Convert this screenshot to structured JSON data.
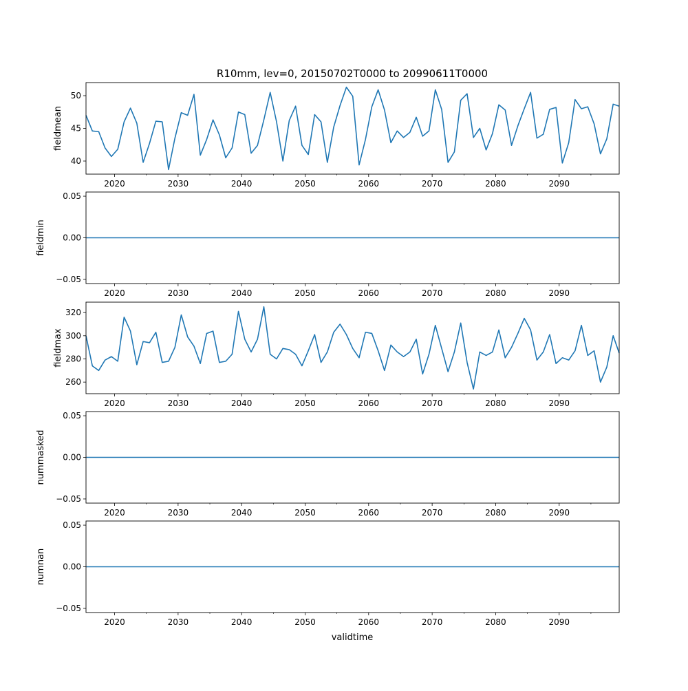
{
  "title": "R10mm, lev=0, 20150702T0000 to 20990611T0000",
  "xlabel": "validtime",
  "line_color": "#1f77b4",
  "x_ticks": [
    2020,
    2030,
    2040,
    2050,
    2060,
    2070,
    2080,
    2090
  ],
  "x_range": [
    2015.5,
    2099.45
  ],
  "chart_data": [
    {
      "type": "line",
      "name": "fieldmean",
      "ylabel": "fieldmean",
      "ylim": [
        38.0,
        52.0
      ],
      "y_ticks": [
        40,
        45,
        50
      ],
      "x": [
        2015.5,
        2016.5,
        2017.5,
        2018.5,
        2019.5,
        2020.5,
        2021.5,
        2022.5,
        2023.5,
        2024.5,
        2025.5,
        2026.5,
        2027.5,
        2028.5,
        2029.5,
        2030.5,
        2031.5,
        2032.5,
        2033.5,
        2034.5,
        2035.5,
        2036.5,
        2037.5,
        2038.5,
        2039.5,
        2040.5,
        2041.5,
        2042.5,
        2043.5,
        2044.5,
        2045.5,
        2046.5,
        2047.5,
        2048.5,
        2049.5,
        2050.5,
        2051.5,
        2052.5,
        2053.5,
        2054.5,
        2055.5,
        2056.5,
        2057.5,
        2058.5,
        2059.5,
        2060.5,
        2061.5,
        2062.5,
        2063.5,
        2064.5,
        2065.5,
        2066.5,
        2067.5,
        2068.5,
        2069.5,
        2070.5,
        2071.5,
        2072.5,
        2073.5,
        2074.5,
        2075.5,
        2076.5,
        2077.5,
        2078.5,
        2079.5,
        2080.5,
        2081.5,
        2082.5,
        2083.5,
        2084.5,
        2085.5,
        2086.5,
        2087.5,
        2088.5,
        2089.5,
        2090.5,
        2091.5,
        2092.5,
        2093.5,
        2094.5,
        2095.5,
        2096.5,
        2097.5,
        2098.5,
        2099.45
      ],
      "y": [
        47.0,
        44.6,
        44.5,
        42.0,
        40.7,
        41.8,
        46.0,
        48.1,
        45.8,
        39.8,
        42.7,
        46.1,
        46.0,
        38.7,
        43.5,
        47.4,
        47.0,
        50.2,
        40.9,
        43.3,
        46.3,
        44.0,
        40.5,
        42.0,
        47.5,
        47.1,
        41.2,
        42.4,
        46.3,
        50.5,
        46.0,
        40.0,
        46.2,
        48.4,
        42.4,
        41.0,
        47.1,
        46.0,
        39.8,
        45.2,
        48.5,
        51.3,
        49.9,
        39.4,
        43.3,
        48.3,
        50.9,
        47.8,
        42.8,
        44.6,
        43.6,
        44.4,
        46.7,
        43.8,
        44.6,
        50.9,
        47.9,
        39.8,
        41.4,
        49.3,
        50.3,
        43.6,
        45.0,
        41.7,
        44.2,
        48.6,
        47.8,
        42.4,
        45.4,
        48.0,
        50.5,
        43.5,
        44.1,
        47.9,
        48.2,
        39.7,
        42.8,
        49.4,
        48.0,
        48.3,
        45.7,
        41.1,
        43.4,
        48.7,
        48.4
      ]
    },
    {
      "type": "line",
      "name": "fieldmin",
      "ylabel": "fieldmin",
      "ylim": [
        -0.055,
        0.055
      ],
      "y_ticks": [
        -0.05,
        0.0,
        0.05
      ],
      "y_tick_labels": [
        "−0.05",
        "0.00",
        "0.05"
      ],
      "x": [
        2015.5,
        2099.45
      ],
      "y": [
        0.0,
        0.0
      ]
    },
    {
      "type": "line",
      "name": "fieldmax",
      "ylabel": "fieldmax",
      "ylim": [
        250.0,
        329.0
      ],
      "y_ticks": [
        260,
        280,
        300,
        320
      ],
      "x": [
        2015.5,
        2016.5,
        2017.5,
        2018.5,
        2019.5,
        2020.5,
        2021.5,
        2022.5,
        2023.5,
        2024.5,
        2025.5,
        2026.5,
        2027.5,
        2028.5,
        2029.5,
        2030.5,
        2031.5,
        2032.5,
        2033.5,
        2034.5,
        2035.5,
        2036.5,
        2037.5,
        2038.5,
        2039.5,
        2040.5,
        2041.5,
        2042.5,
        2043.5,
        2044.5,
        2045.5,
        2046.5,
        2047.5,
        2048.5,
        2049.5,
        2050.5,
        2051.5,
        2052.5,
        2053.5,
        2054.5,
        2055.5,
        2056.5,
        2057.5,
        2058.5,
        2059.5,
        2060.5,
        2061.5,
        2062.5,
        2063.5,
        2064.5,
        2065.5,
        2066.5,
        2067.5,
        2068.5,
        2069.5,
        2070.5,
        2071.5,
        2072.5,
        2073.5,
        2074.5,
        2075.5,
        2076.5,
        2077.5,
        2078.5,
        2079.5,
        2080.5,
        2081.5,
        2082.5,
        2083.5,
        2084.5,
        2085.5,
        2086.5,
        2087.5,
        2088.5,
        2089.5,
        2090.5,
        2091.5,
        2092.5,
        2093.5,
        2094.5,
        2095.5,
        2096.5,
        2097.5,
        2098.5,
        2099.45
      ],
      "y": [
        300,
        274,
        270,
        279,
        282,
        278,
        316,
        304,
        275,
        295,
        294,
        303,
        277,
        278,
        290,
        318,
        299,
        291,
        276,
        302,
        304,
        277,
        278,
        284,
        321,
        297,
        286,
        297,
        325,
        284,
        280,
        289,
        288,
        284,
        274,
        287,
        301,
        277,
        286,
        303,
        310,
        301,
        289,
        281,
        303,
        302,
        287,
        270,
        292,
        286,
        282,
        286,
        297,
        267,
        284,
        309,
        289,
        269,
        286,
        311,
        277,
        254,
        286,
        283,
        286,
        305,
        281,
        290,
        302,
        315,
        305,
        279,
        286,
        301,
        276,
        281,
        279,
        287,
        309,
        283,
        287,
        260,
        273,
        300,
        285
      ]
    },
    {
      "type": "line",
      "name": "nummasked",
      "ylabel": "nummasked",
      "ylim": [
        -0.055,
        0.055
      ],
      "y_ticks": [
        -0.05,
        0.0,
        0.05
      ],
      "y_tick_labels": [
        "−0.05",
        "0.00",
        "0.05"
      ],
      "x": [
        2015.5,
        2099.45
      ],
      "y": [
        0.0,
        0.0
      ]
    },
    {
      "type": "line",
      "name": "numnan",
      "ylabel": "numnan",
      "ylim": [
        -0.055,
        0.055
      ],
      "y_ticks": [
        -0.05,
        0.0,
        0.05
      ],
      "y_tick_labels": [
        "−0.05",
        "0.00",
        "0.05"
      ],
      "x": [
        2015.5,
        2099.45
      ],
      "y": [
        0.0,
        0.0
      ]
    }
  ]
}
